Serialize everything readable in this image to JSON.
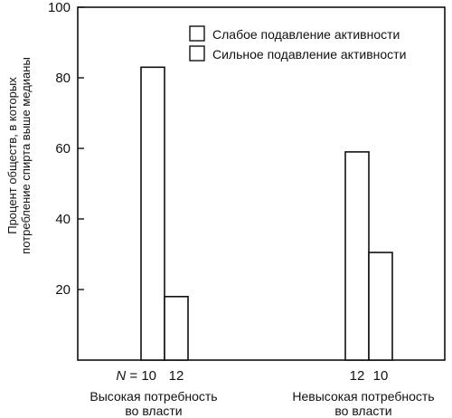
{
  "chart_data": {
    "type": "bar",
    "categories": [
      "Высокая потребность во власти",
      "Невысокая потребность во власти"
    ],
    "category_lines": [
      [
        "Высокая потребность",
        "во власти"
      ],
      [
        "Невысокая потребность",
        "во власти"
      ]
    ],
    "series": [
      {
        "name": "Слабое подавление активности",
        "values": [
          83,
          59
        ],
        "n": [
          "10",
          "12"
        ],
        "color": "#ffffff"
      },
      {
        "name": "Сильное подавление активности",
        "values": [
          18,
          30.5
        ],
        "n": [
          "12",
          "10"
        ],
        "color": "#ffffff"
      }
    ],
    "n_prefix": "N = ",
    "ylabel": "Процент обществ, в которых потребление спирта выше медианы",
    "ylabel_lines": [
      "Процент обществ, в которых",
      "потребление спирта выше медианы"
    ],
    "ylim": [
      0,
      100
    ],
    "yticks": [
      20,
      40,
      60,
      80,
      100
    ],
    "xlabel": "",
    "title": "",
    "legend_position": "top-right",
    "grid": false
  }
}
